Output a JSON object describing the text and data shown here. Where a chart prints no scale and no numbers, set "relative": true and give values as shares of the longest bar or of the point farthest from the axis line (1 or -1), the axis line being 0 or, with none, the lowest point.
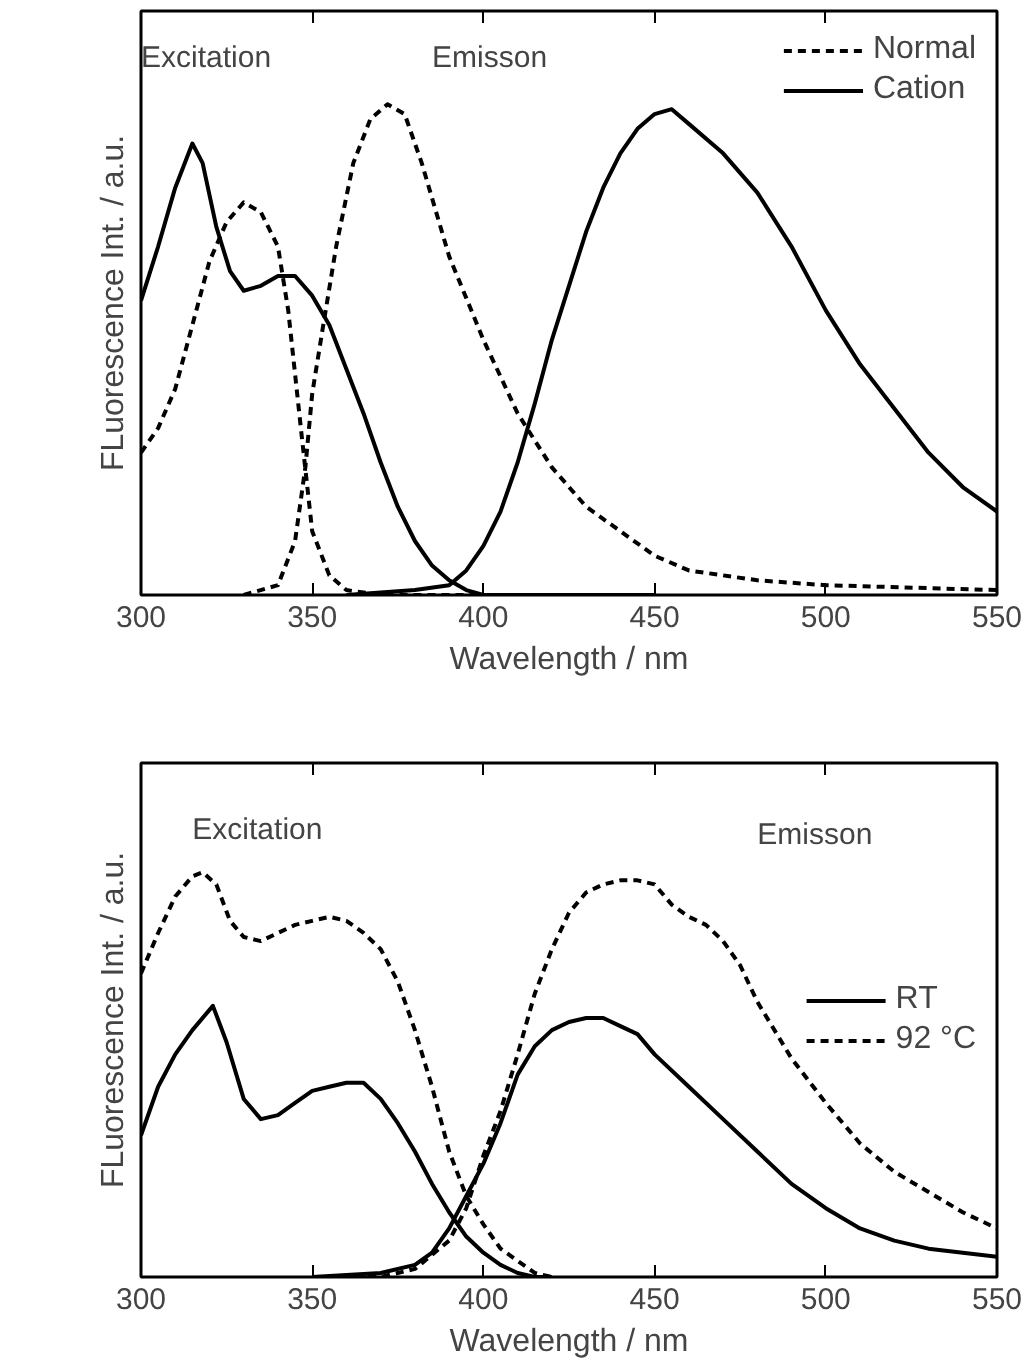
{
  "chart_data": [
    {
      "type": "line",
      "relative": true,
      "xlabel": "Wavelength / nm",
      "ylabel": "FLuorescence Int. / a.u.",
      "xlim": [
        300,
        550
      ],
      "xticks": [
        300,
        350,
        400,
        450,
        500,
        550
      ],
      "grid": false,
      "legend": "top right",
      "tick_labels": "x",
      "annotations": [
        "Excitation",
        "Emisson"
      ],
      "series": [
        {
          "name": "Normal",
          "color": "#000000",
          "line_style": "dashed",
          "x": [
            300,
            305,
            310,
            315,
            320,
            325,
            330,
            335,
            340,
            343,
            345,
            347,
            350,
            355,
            360,
            370,
            400
          ],
          "values": [
            0.29,
            0.34,
            0.42,
            0.55,
            0.68,
            0.76,
            0.8,
            0.78,
            0.71,
            0.58,
            0.45,
            0.32,
            0.13,
            0.04,
            0.01,
            0,
            0
          ]
        },
        {
          "name": "Cation",
          "color": "#000000",
          "line_style": "solid",
          "x": [
            300,
            305,
            310,
            315,
            318,
            322,
            326,
            330,
            335,
            340,
            345,
            350,
            355,
            360,
            365,
            370,
            375,
            380,
            385,
            390,
            395,
            400,
            420,
            450
          ],
          "values": [
            0.6,
            0.71,
            0.83,
            0.92,
            0.88,
            0.75,
            0.66,
            0.62,
            0.63,
            0.65,
            0.65,
            0.61,
            0.55,
            0.46,
            0.37,
            0.27,
            0.18,
            0.11,
            0.06,
            0.03,
            0.01,
            0,
            0,
            0
          ]
        },
        {
          "color": "#000000",
          "line_style": "dashed",
          "x": [
            330,
            340,
            345,
            348,
            350,
            353,
            357,
            362,
            367,
            372,
            377,
            382,
            390,
            400,
            410,
            420,
            430,
            440,
            450,
            460,
            480,
            500,
            550
          ],
          "values": [
            0,
            0.02,
            0.11,
            0.26,
            0.41,
            0.54,
            0.71,
            0.88,
            0.97,
            1.0,
            0.98,
            0.88,
            0.69,
            0.52,
            0.37,
            0.26,
            0.18,
            0.13,
            0.08,
            0.05,
            0.03,
            0.02,
            0.01
          ]
        },
        {
          "color": "#000000",
          "line_style": "solid",
          "x": [
            360,
            380,
            390,
            395,
            400,
            405,
            410,
            415,
            420,
            425,
            430,
            435,
            440,
            445,
            450,
            455,
            460,
            470,
            480,
            490,
            500,
            510,
            520,
            530,
            540,
            550
          ],
          "values": [
            0,
            0.01,
            0.02,
            0.05,
            0.1,
            0.17,
            0.27,
            0.39,
            0.52,
            0.63,
            0.74,
            0.83,
            0.9,
            0.95,
            0.98,
            0.99,
            0.96,
            0.9,
            0.82,
            0.71,
            0.58,
            0.47,
            0.38,
            0.29,
            0.22,
            0.17
          ]
        }
      ]
    },
    {
      "type": "line",
      "relative": true,
      "xlabel": "Wavelength / nm",
      "ylabel": "FLuorescence Int. / a.u.",
      "xlim": [
        300,
        550
      ],
      "xticks": [
        300,
        350,
        400,
        450,
        500,
        550
      ],
      "grid": false,
      "legend": "right",
      "tick_labels": "x",
      "annotations": [
        "Excitation",
        "Emisson"
      ],
      "series": [
        {
          "name": "RT",
          "color": "#000000",
          "line_style": "solid",
          "x": [
            300,
            305,
            310,
            315,
            321,
            325,
            330,
            335,
            340,
            345,
            350,
            355,
            360,
            365,
            370,
            375,
            380,
            385,
            390,
            395,
            400,
            405,
            410,
            415,
            420
          ],
          "values": [
            0.35,
            0.47,
            0.55,
            0.61,
            0.67,
            0.58,
            0.44,
            0.39,
            0.4,
            0.43,
            0.46,
            0.47,
            0.48,
            0.48,
            0.44,
            0.38,
            0.31,
            0.23,
            0.16,
            0.1,
            0.06,
            0.03,
            0.01,
            0,
            0
          ]
        },
        {
          "name": "92 °C",
          "color": "#000000",
          "line_style": "dashed",
          "x": [
            300,
            305,
            310,
            315,
            318,
            322,
            326,
            330,
            335,
            340,
            345,
            350,
            355,
            360,
            365,
            370,
            375,
            380,
            385,
            390,
            395,
            400,
            405,
            410,
            415,
            420
          ],
          "values": [
            0.75,
            0.85,
            0.94,
            0.99,
            1.0,
            0.97,
            0.88,
            0.84,
            0.83,
            0.85,
            0.87,
            0.88,
            0.89,
            0.88,
            0.85,
            0.81,
            0.73,
            0.61,
            0.47,
            0.31,
            0.2,
            0.13,
            0.07,
            0.04,
            0.01,
            0
          ]
        },
        {
          "color": "#000000",
          "line_style": "solid",
          "x": [
            350,
            370,
            380,
            385,
            390,
            395,
            400,
            405,
            410,
            415,
            420,
            425,
            430,
            435,
            440,
            445,
            450,
            460,
            470,
            480,
            490,
            500,
            510,
            520,
            530,
            540,
            550
          ],
          "values": [
            0,
            0.01,
            0.03,
            0.06,
            0.12,
            0.2,
            0.28,
            0.38,
            0.5,
            0.57,
            0.61,
            0.63,
            0.64,
            0.64,
            0.62,
            0.6,
            0.55,
            0.47,
            0.39,
            0.31,
            0.23,
            0.17,
            0.12,
            0.09,
            0.07,
            0.06,
            0.05
          ]
        },
        {
          "color": "#000000",
          "line_style": "dashed",
          "x": [
            350,
            370,
            380,
            390,
            395,
            400,
            405,
            410,
            415,
            420,
            425,
            430,
            435,
            440,
            445,
            450,
            455,
            460,
            465,
            470,
            475,
            480,
            490,
            500,
            510,
            520,
            530,
            540,
            550
          ],
          "values": [
            0,
            0,
            0.02,
            0.09,
            0.17,
            0.3,
            0.41,
            0.55,
            0.7,
            0.81,
            0.9,
            0.95,
            0.97,
            0.98,
            0.98,
            0.97,
            0.92,
            0.89,
            0.87,
            0.83,
            0.77,
            0.68,
            0.54,
            0.43,
            0.33,
            0.26,
            0.21,
            0.16,
            0.12
          ]
        }
      ]
    }
  ]
}
